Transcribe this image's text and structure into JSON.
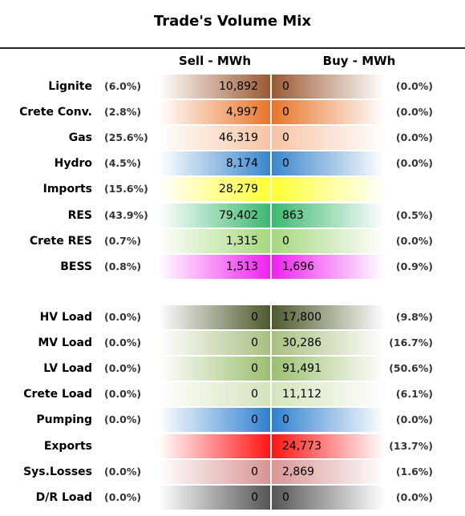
{
  "title": "Trade's Volume Mix",
  "headers": {
    "sell": "Sell - MWh",
    "buy": "Buy - MWh"
  },
  "groups": [
    {
      "rows": [
        {
          "label": "Lignite",
          "sell_pct": "(6.0%)",
          "sell": "10,892",
          "buy": "0",
          "buy_pct": "(0.0%)",
          "color": "#9a5a34"
        },
        {
          "label": "Crete Conv.",
          "sell_pct": "(2.8%)",
          "sell": "4,997",
          "buy": "0",
          "buy_pct": "(0.0%)",
          "color": "#e8742a"
        },
        {
          "label": "Gas",
          "sell_pct": "(25.6%)",
          "sell": "46,319",
          "buy": "0",
          "buy_pct": "(0.0%)",
          "color": "#f6c4a4"
        },
        {
          "label": "Hydro",
          "sell_pct": "(4.5%)",
          "sell": "8,174",
          "buy": "0",
          "buy_pct": "(0.0%)",
          "color": "#3a86cc"
        },
        {
          "label": "Imports",
          "sell_pct": "(15.6%)",
          "sell": "28,279",
          "buy": null,
          "buy_pct": null,
          "color": "#ffff33"
        },
        {
          "label": "RES",
          "sell_pct": "(43.9%)",
          "sell": "79,402",
          "buy": "863",
          "buy_pct": "(0.5%)",
          "color": "#3cb870"
        },
        {
          "label": "Crete RES",
          "sell_pct": "(0.7%)",
          "sell": "1,315",
          "buy": "0",
          "buy_pct": "(0.0%)",
          "color": "#a6d87e"
        },
        {
          "label": "BESS",
          "sell_pct": "(0.8%)",
          "sell": "1,513",
          "buy": "1,696",
          "buy_pct": "(0.9%)",
          "color": "#ee22ee"
        }
      ]
    },
    {
      "rows": [
        {
          "label": "HV Load",
          "sell_pct": "(0.0%)",
          "sell": "0",
          "buy": "17,800",
          "buy_pct": "(9.8%)",
          "color": "#4b5a2c"
        },
        {
          "label": "MV Load",
          "sell_pct": "(0.0%)",
          "sell": "0",
          "buy": "30,286",
          "buy_pct": "(16.7%)",
          "color": "#a9bf82"
        },
        {
          "label": "LV Load",
          "sell_pct": "(0.0%)",
          "sell": "0",
          "buy": "91,491",
          "buy_pct": "(50.6%)",
          "color": "#9cbe70"
        },
        {
          "label": "Crete Load",
          "sell_pct": "(0.0%)",
          "sell": "0",
          "buy": "11,112",
          "buy_pct": "(6.1%)",
          "color": "#d4e4bc"
        },
        {
          "label": "Pumping",
          "sell_pct": "(0.0%)",
          "sell": "0",
          "buy": "0",
          "buy_pct": "(0.0%)",
          "color": "#2f80d0"
        },
        {
          "label": "Exports",
          "sell_pct": null,
          "sell": null,
          "buy": "24,773",
          "buy_pct": "(13.7%)",
          "color": "#ff1414"
        },
        {
          "label": "Sys.Losses",
          "sell_pct": "(0.0%)",
          "sell": "0",
          "buy": "2,869",
          "buy_pct": "(1.6%)",
          "color": "#d89494"
        },
        {
          "label": "D/R Load",
          "sell_pct": "(0.0%)",
          "sell": "0",
          "buy": "0",
          "buy_pct": "(0.0%)",
          "color": "#555555"
        }
      ]
    }
  ]
}
